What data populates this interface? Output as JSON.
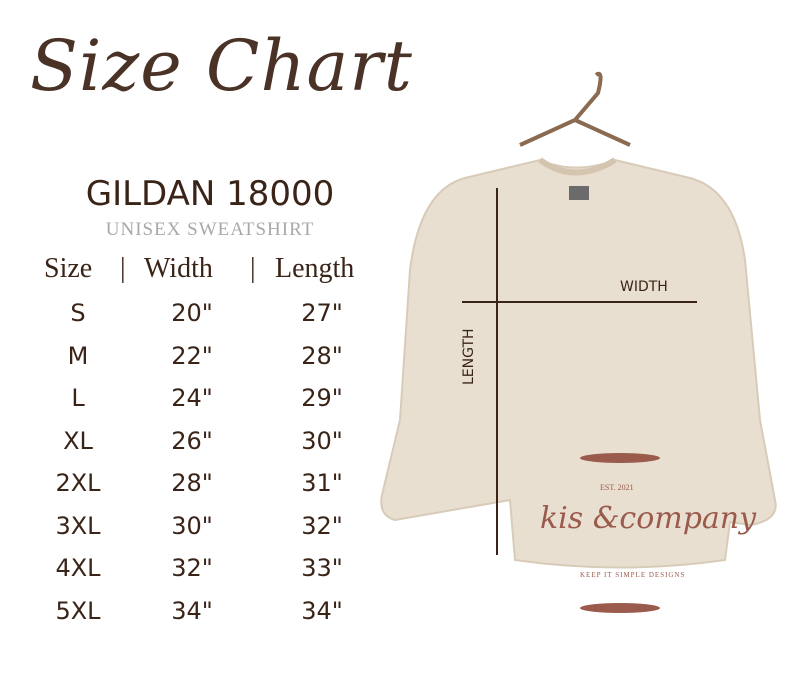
{
  "title": "Size Chart",
  "model": "GILDAN 18000",
  "subtitle": "UNISEX SWEATSHIRT",
  "columns": [
    "Size",
    "|",
    "Width",
    "|",
    "Length"
  ],
  "rows": [
    {
      "size": "S",
      "width": "20\"",
      "length": "27\""
    },
    {
      "size": "M",
      "width": "22\"",
      "length": "28\""
    },
    {
      "size": "L",
      "width": "24\"",
      "length": "29\""
    },
    {
      "size": "XL",
      "width": "26\"",
      "length": "30\""
    },
    {
      "size": "2XL",
      "width": "28\"",
      "length": "31\""
    },
    {
      "size": "3XL",
      "width": "30\"",
      "length": "32\""
    },
    {
      "size": "4XL",
      "width": "32\"",
      "length": "33\""
    },
    {
      "size": "5XL",
      "width": "34\"",
      "length": "34\""
    }
  ],
  "diagram": {
    "width_label": "WIDTH",
    "length_label": "LENGTH"
  },
  "logo": {
    "est": "EST. 2021",
    "name": "kis &company",
    "tagline": "KEEP IT SIMPLE DESIGNS"
  },
  "colors": {
    "text": "#3a2418",
    "shirt": "#e9dfd0",
    "logo": "#9a5a4c"
  }
}
